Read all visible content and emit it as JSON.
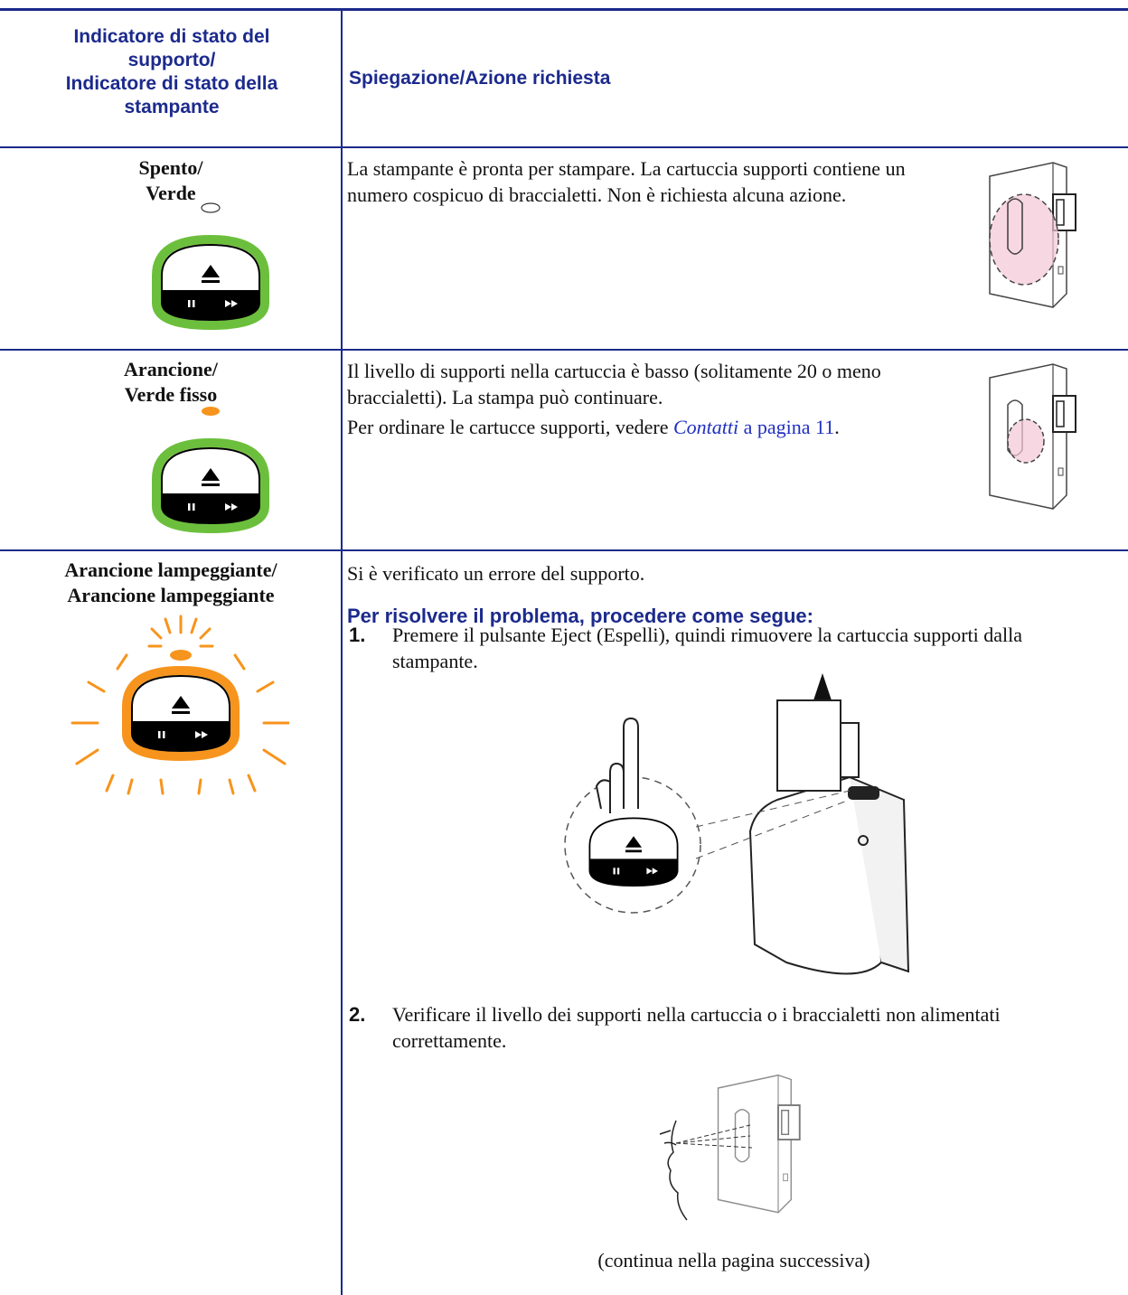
{
  "table": {
    "headers": [
      [
        "Indicatore di stato del supporto/",
        "Indicatore di stato della stampante"
      ],
      "Spiegazione/Azione richiesta"
    ],
    "rows": [
      {
        "status": [
          "Spento/",
          "Verde"
        ],
        "text": "La stampante è pronta per stampare. La cartuccia supporti contiene un numero cospicuo di braccialetti. Non è richiesta alcuna azione."
      },
      {
        "status": [
          "Arancione/",
          "Verde fisso"
        ],
        "text": "Il livello di supporti nella cartuccia è basso (solitamente 20 o meno braccialetti). La stampa può continuare.",
        "link_para": {
          "before": "Per ordinare le cartucce supporti, vedere ",
          "link": "Contatti",
          "page_link": " a pagina 11",
          "after": "."
        }
      },
      {
        "status": [
          "Arancione lampeggiante/",
          "Arancione lampeggiante"
        ],
        "text": "Si è verificato un errore del supporto.",
        "heading": "Per risolvere il problema, procedere come segue:",
        "steps": [
          {
            "number": "1.",
            "text": "Premere il pulsante Eject (Espelli), quindi rimuovere la cartuccia supporti dalla stampante."
          },
          {
            "number": "2.",
            "text": "Verificare il livello dei supporti nella cartuccia o i braccialetti non alimentati correttamente."
          }
        ],
        "footer": "(continua nella pagina successiva)"
      }
    ]
  }
}
